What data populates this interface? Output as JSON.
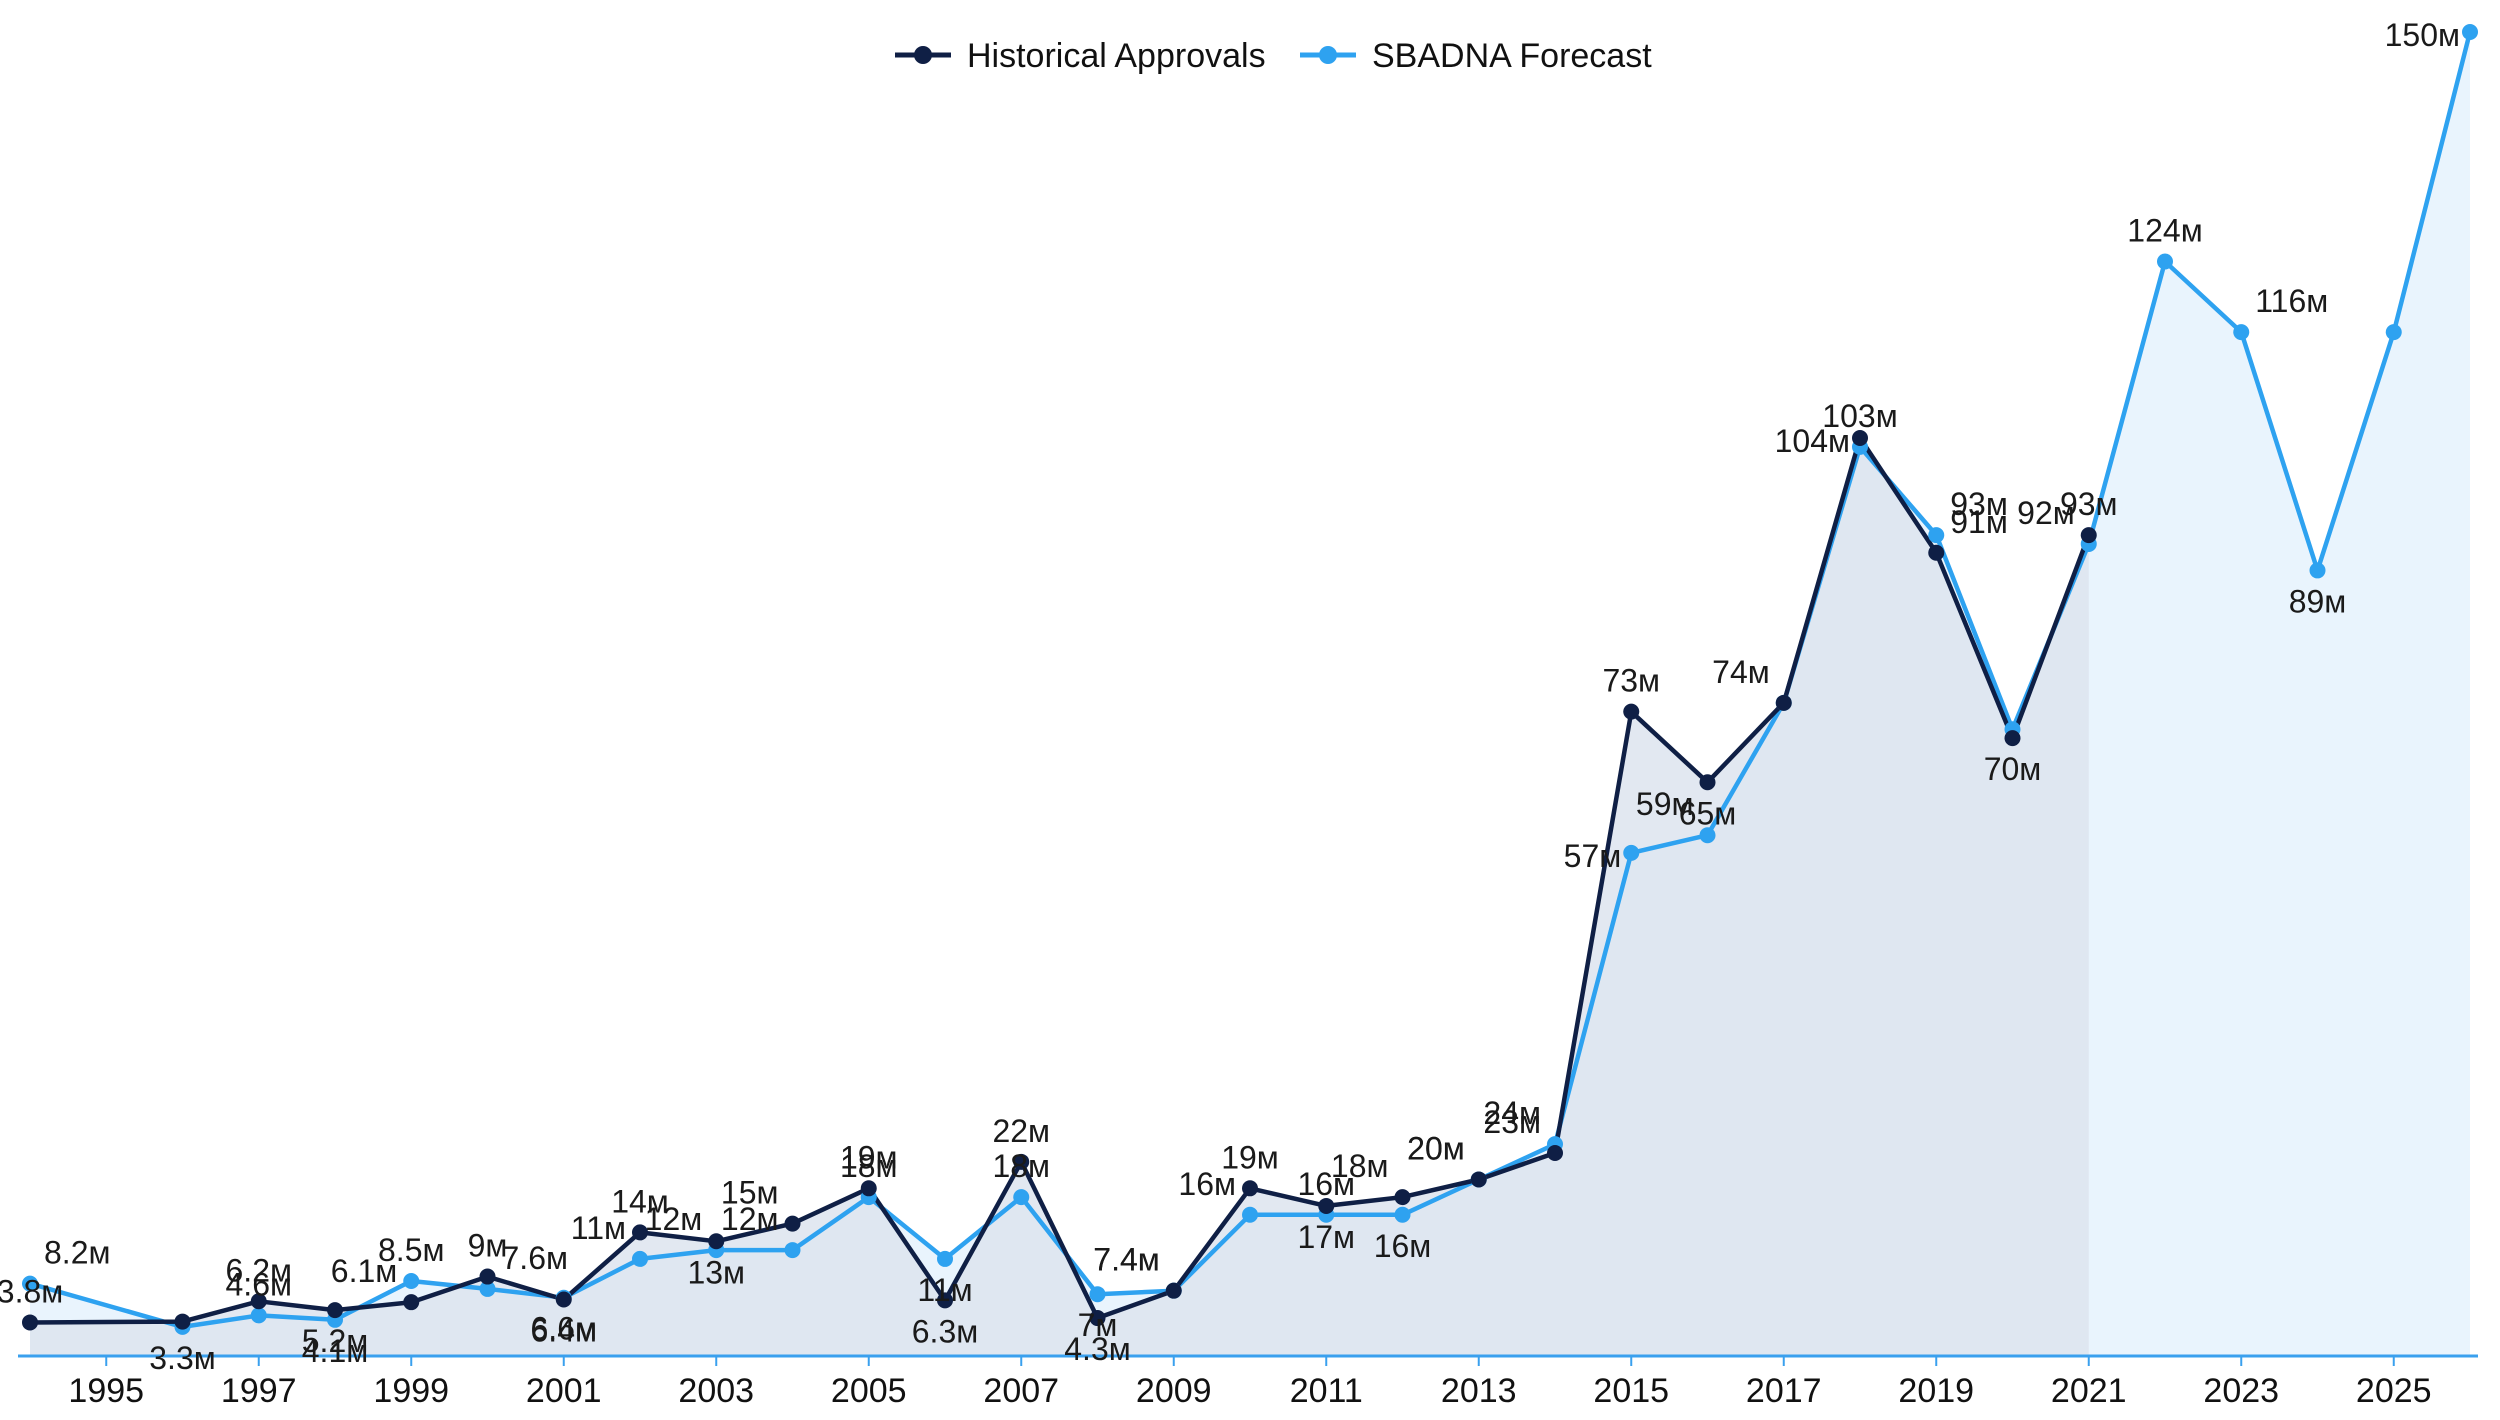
{
  "chart_data": {
    "type": "area",
    "title": "",
    "xlabel": "",
    "ylabel": "",
    "x_range": [
      1994,
      2026
    ],
    "ylim": [
      0,
      150
    ],
    "grid": false,
    "legend_position": "top-center",
    "colors": {
      "historical": "#0f1f45",
      "forecast": "#2ea2f0",
      "historical_fill": "#dde4ee",
      "forecast_fill": "#e9f4fd",
      "axis": "#3aa0ee"
    },
    "x_ticks": [
      "1995",
      "1997",
      "1999",
      "2001",
      "2003",
      "2005",
      "2007",
      "2009",
      "2011",
      "2013",
      "2015",
      "2017",
      "2019",
      "2021",
      "2023",
      "2025"
    ],
    "series": [
      {
        "name": "Historical Approvals",
        "key": "historical",
        "points": [
          {
            "x": 1994,
            "y": 3.8,
            "label": "3.8м",
            "pos": "above"
          },
          {
            "x": 1996,
            "y": 3.9,
            "label": "",
            "pos": "above"
          },
          {
            "x": 1997,
            "y": 6.2,
            "label": "6.2м",
            "pos": "above"
          },
          {
            "x": 1998,
            "y": 5.2,
            "label": "5.2м",
            "pos": "below"
          },
          {
            "x": 1999,
            "y": 6.1,
            "label": "6.1м",
            "pos": "above-left"
          },
          {
            "x": 2000,
            "y": 9,
            "label": "9м",
            "pos": "above"
          },
          {
            "x": 2001,
            "y": 6.4,
            "label": "6.4м",
            "pos": "below"
          },
          {
            "x": 2002,
            "y": 14,
            "label": "14м",
            "pos": "above"
          },
          {
            "x": 2003,
            "y": 13,
            "label": "13м",
            "pos": "below"
          },
          {
            "x": 2004,
            "y": 15,
            "label": "15м",
            "pos": "above-left"
          },
          {
            "x": 2005,
            "y": 19,
            "label": "19м",
            "pos": "above"
          },
          {
            "x": 2006,
            "y": 6.3,
            "label": "6.3м",
            "pos": "below"
          },
          {
            "x": 2007,
            "y": 22,
            "label": "22м",
            "pos": "above"
          },
          {
            "x": 2008,
            "y": 4.3,
            "label": "4.3м",
            "pos": "below"
          },
          {
            "x": 2009,
            "y": 7.4,
            "label": "7.4м",
            "pos": "above-left"
          },
          {
            "x": 2010,
            "y": 19,
            "label": "19м",
            "pos": "above"
          },
          {
            "x": 2011,
            "y": 17,
            "label": "17м",
            "pos": "below"
          },
          {
            "x": 2012,
            "y": 18,
            "label": "18м",
            "pos": "above-left"
          },
          {
            "x": 2013,
            "y": 20,
            "label": "20м",
            "pos": "above-left"
          },
          {
            "x": 2014,
            "y": 23,
            "label": "23м",
            "pos": "above-left"
          },
          {
            "x": 2015,
            "y": 73,
            "label": "73м",
            "pos": "above"
          },
          {
            "x": 2016,
            "y": 65,
            "label": "65м",
            "pos": "below"
          },
          {
            "x": 2017,
            "y": 74,
            "label": "74м",
            "pos": "above-left"
          },
          {
            "x": 2018,
            "y": 104,
            "label": "104м",
            "pos": "left"
          },
          {
            "x": 2019,
            "y": 91,
            "label": "91м",
            "pos": "above-right"
          },
          {
            "x": 2020,
            "y": 70,
            "label": "70м",
            "pos": "below"
          },
          {
            "x": 2021,
            "y": 93,
            "label": "93м",
            "pos": "above"
          }
        ]
      },
      {
        "name": "SBADNA Forecast",
        "key": "forecast",
        "points": [
          {
            "x": 1994,
            "y": 8.2,
            "label": "8.2м",
            "pos": "above-right"
          },
          {
            "x": 1996,
            "y": 3.3,
            "label": "3.3м",
            "pos": "below"
          },
          {
            "x": 1997,
            "y": 4.6,
            "label": "4.6м",
            "pos": "above"
          },
          {
            "x": 1998,
            "y": 4.1,
            "label": "4.1м",
            "pos": "below"
          },
          {
            "x": 1999,
            "y": 8.5,
            "label": "8.5м",
            "pos": "above"
          },
          {
            "x": 2000,
            "y": 7.6,
            "label": "7.6м",
            "pos": "above-right"
          },
          {
            "x": 2001,
            "y": 6.6,
            "label": "6.6м",
            "pos": "below"
          },
          {
            "x": 2002,
            "y": 11,
            "label": "11м",
            "pos": "above-left"
          },
          {
            "x": 2003,
            "y": 12,
            "label": "12м",
            "pos": "above-left"
          },
          {
            "x": 2004,
            "y": 12,
            "label": "12м",
            "pos": "above-left"
          },
          {
            "x": 2005,
            "y": 18,
            "label": "18м",
            "pos": "above"
          },
          {
            "x": 2006,
            "y": 11,
            "label": "11м",
            "pos": "below"
          },
          {
            "x": 2007,
            "y": 18,
            "label": "18м",
            "pos": "above"
          },
          {
            "x": 2008,
            "y": 7,
            "label": "7м",
            "pos": "below"
          },
          {
            "x": 2009,
            "y": 7.4,
            "label": "7.4м",
            "pos": "above-left"
          },
          {
            "x": 2010,
            "y": 16,
            "label": "16м",
            "pos": "above-left"
          },
          {
            "x": 2011,
            "y": 16,
            "label": "16м",
            "pos": "above"
          },
          {
            "x": 2012,
            "y": 16,
            "label": "16м",
            "pos": "below"
          },
          {
            "x": 2013,
            "y": 20,
            "label": "20м",
            "pos": "above-left"
          },
          {
            "x": 2014,
            "y": 24,
            "label": "24м",
            "pos": "above-left"
          },
          {
            "x": 2015,
            "y": 57,
            "label": "57м",
            "pos": "left"
          },
          {
            "x": 2016,
            "y": 59,
            "label": "59м",
            "pos": "above-left"
          },
          {
            "x": 2017,
            "y": 74,
            "label": "",
            "pos": "above"
          },
          {
            "x": 2018,
            "y": 103,
            "label": "103м",
            "pos": "above"
          },
          {
            "x": 2019,
            "y": 93,
            "label": "93м",
            "pos": "above-right"
          },
          {
            "x": 2020,
            "y": 71,
            "label": "",
            "pos": "above"
          },
          {
            "x": 2021,
            "y": 92,
            "label": "92м",
            "pos": "above-left"
          },
          {
            "x": 2022,
            "y": 124,
            "label": "124м",
            "pos": "above"
          },
          {
            "x": 2023,
            "y": 116,
            "label": "116м",
            "pos": "above-right"
          },
          {
            "x": 2024,
            "y": 89,
            "label": "89м",
            "pos": "below"
          },
          {
            "x": 2025,
            "y": 116,
            "label": "",
            "pos": "above"
          },
          {
            "x": 2026,
            "y": 150,
            "label": "150м",
            "pos": "left"
          }
        ]
      }
    ]
  }
}
